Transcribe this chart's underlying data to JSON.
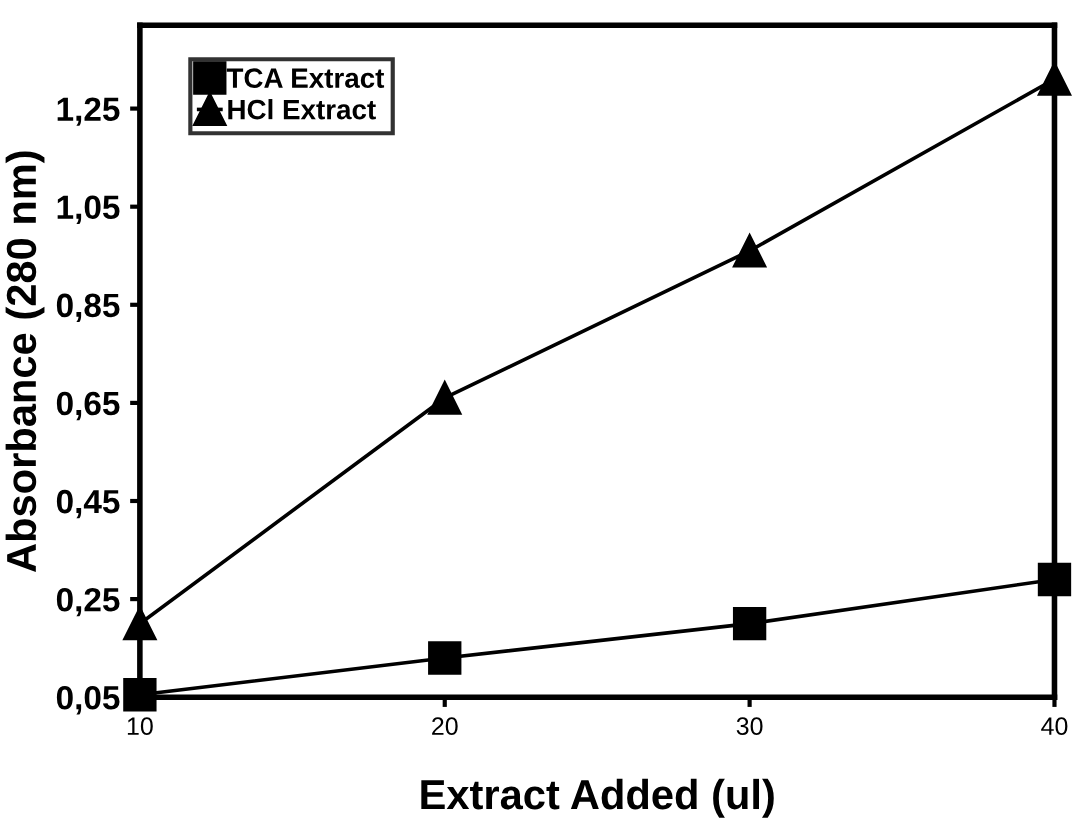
{
  "chart_data": {
    "type": "line",
    "xlabel": "Extract Added (ul)",
    "ylabel": "Absorbance (280 nm)",
    "x": [
      10,
      20,
      30,
      40
    ],
    "series": [
      {
        "name": "TCA Extract",
        "color": "#000000",
        "marker": "square",
        "values": [
          0.055,
          0.13,
          0.2,
          0.29
        ]
      },
      {
        "name": "HCl Extract",
        "color": "#000000",
        "marker": "triangle",
        "values": [
          0.2,
          0.66,
          0.96,
          1.31
        ]
      }
    ],
    "xlim": [
      10,
      40
    ],
    "xticks": [
      10,
      20,
      30,
      40
    ],
    "ylim": [
      0.05,
      1.42
    ],
    "yticks": [
      {
        "value": 0.05,
        "label": "0,05"
      },
      {
        "value": 0.25,
        "label": "0,25"
      },
      {
        "value": 0.45,
        "label": "0,45"
      },
      {
        "value": 0.65,
        "label": "0,65"
      },
      {
        "value": 0.85,
        "label": "0,85"
      },
      {
        "value": 1.05,
        "label": "1,05"
      },
      {
        "value": 1.25,
        "label": "1,25"
      }
    ],
    "legend": "top left",
    "grid": false,
    "line_style": "solid"
  }
}
